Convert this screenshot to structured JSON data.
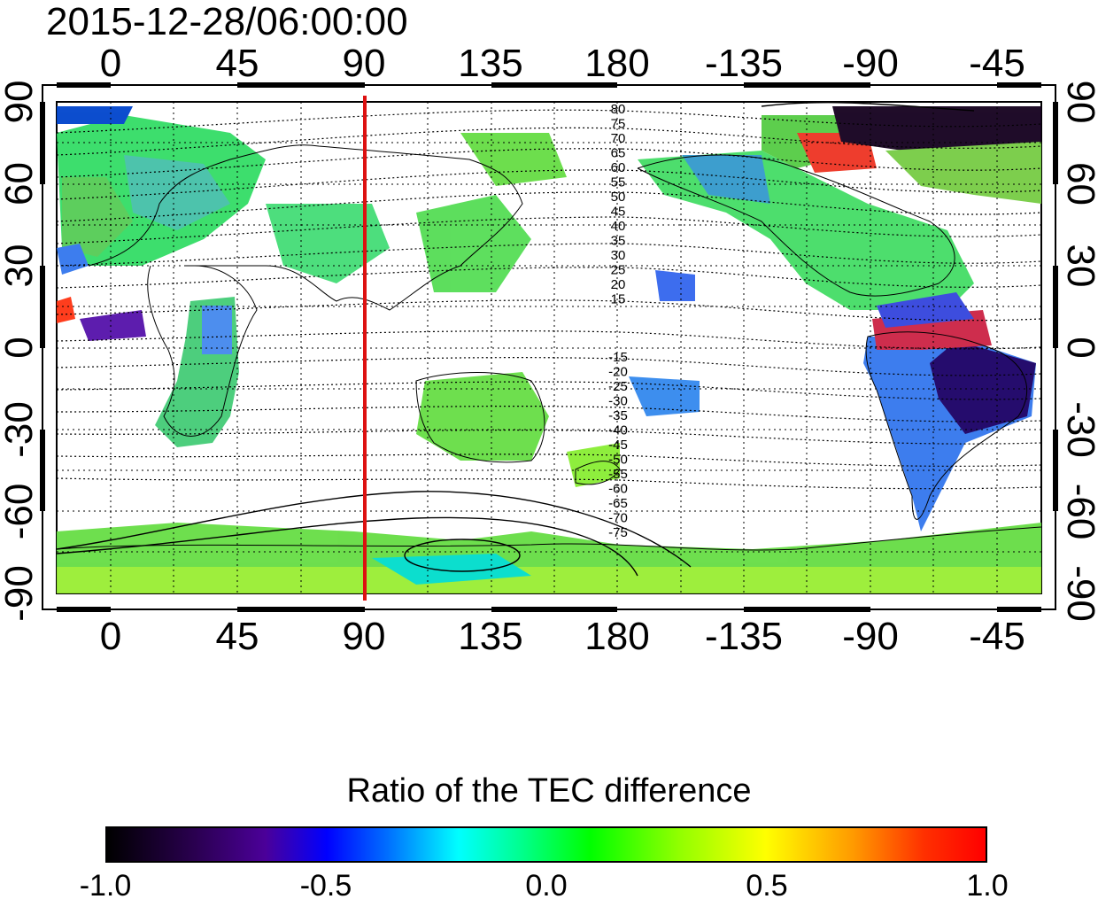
{
  "timestamp": "2015-12-28/06:00:00",
  "top_lon_ticks": [
    "0",
    "45",
    "90",
    "135",
    "180",
    "-135",
    "-90",
    "-45"
  ],
  "bottom_lon_ticks": [
    "0",
    "45",
    "90",
    "135",
    "180",
    "-135",
    "-90",
    "-45"
  ],
  "left_lat_ticks": [
    "90",
    "60",
    "30",
    "0",
    "-30",
    "-60",
    "-90"
  ],
  "right_lat_ticks": [
    "90",
    "60",
    "30",
    "0",
    "-30",
    "-60",
    "-90"
  ],
  "contour_labels_north": [
    "80",
    "75",
    "70",
    "65",
    "60",
    "55",
    "50",
    "45",
    "40",
    "35",
    "30",
    "25",
    "20",
    "15"
  ],
  "contour_labels_south": [
    "-15",
    "-20",
    "-25",
    "-30",
    "-35",
    "-40",
    "-45",
    "-50",
    "-55",
    "-60",
    "-65",
    "-70",
    "-75"
  ],
  "marked_longitude": 90,
  "marker_color": "#dd1111",
  "colorbar": {
    "title": "Ratio of the TEC difference",
    "min_label": "-1.0",
    "tick_labels": [
      "-1.0",
      "-0.5",
      "0.0",
      "0.5",
      "1.0"
    ],
    "range": [
      -1.0,
      1.0
    ],
    "colormap": [
      "#000000",
      "#4b0099",
      "#0000ff",
      "#00ffff",
      "#00ff00",
      "#ffff00",
      "#ff0000"
    ]
  }
}
